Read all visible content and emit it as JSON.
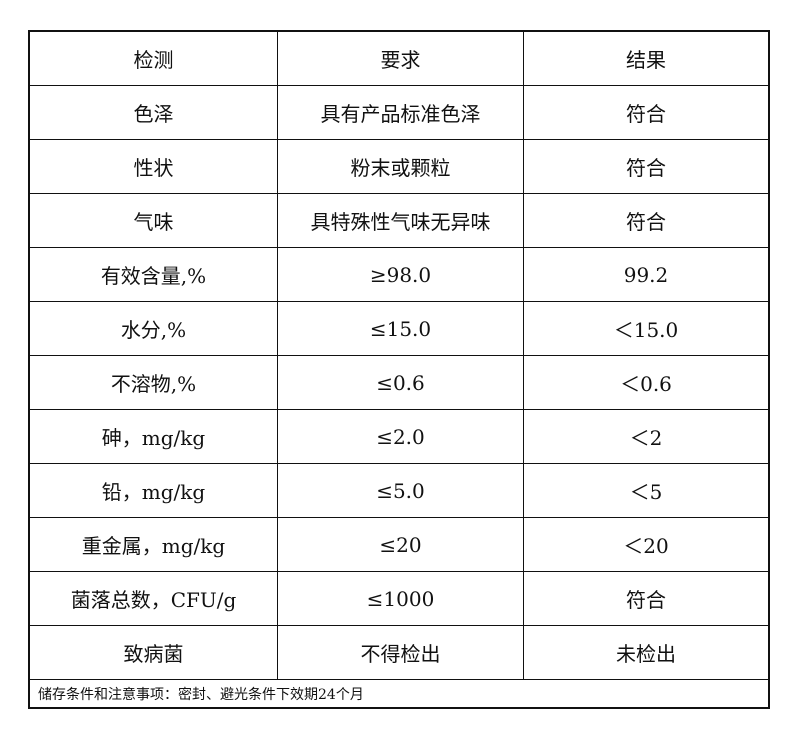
{
  "table": {
    "header": [
      "检测",
      "要求",
      "结果"
    ],
    "rows": [
      [
        "色泽",
        "具有产品标准色泽",
        "符合"
      ],
      [
        "性状",
        "粉末或颗粒",
        "符合"
      ],
      [
        "气味",
        "具特殊性气味无异味",
        "符合"
      ],
      [
        "有效含量,%",
        "≥98.0",
        "99.2"
      ],
      [
        "水分,%",
        "≤15.0",
        "＜15.0"
      ],
      [
        "不溶物,%",
        "≤0.6",
        "＜0.6"
      ],
      [
        "砷，mg/kg",
        "≤2.0",
        "＜2"
      ],
      [
        "铅，mg/kg",
        "≤5.0",
        "＜5"
      ],
      [
        "重金属，mg/kg",
        "≤20",
        "＜20"
      ],
      [
        "菌落总数，CFU/g",
        "≤1000",
        "符合"
      ],
      [
        "致病菌",
        "不得检出",
        "未检出"
      ]
    ],
    "note": "储存条件和注意事项：密封、避光条件下效期24个月"
  }
}
